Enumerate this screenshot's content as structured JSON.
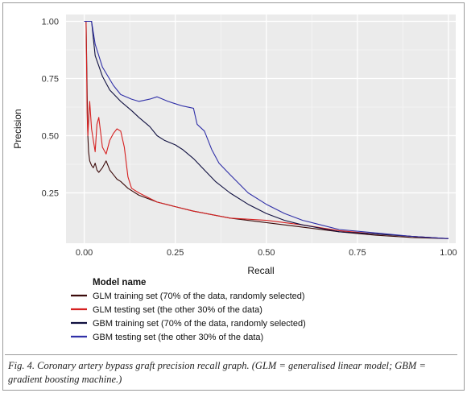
{
  "caption": "Fig. 4. Coronary artery bypass graft precision recall graph. (GLM = generalised linear model; GBM = gradient boosting machine.)",
  "chart_data": {
    "type": "line",
    "xlabel": "Recall",
    "ylabel": "Precision",
    "xlim": [
      -0.05,
      1.02
    ],
    "ylim": [
      0.03,
      1.03
    ],
    "x_ticks": [
      0.0,
      0.25,
      0.5,
      0.75,
      1.0
    ],
    "x_tick_labels": [
      "0.00",
      "0.25",
      "0.50",
      "0.75",
      "1.00"
    ],
    "y_ticks": [
      0.25,
      0.5,
      0.75,
      1.0
    ],
    "y_tick_labels": [
      "0.25",
      "0.50",
      "0.75",
      "1.00"
    ],
    "grid": true,
    "background": "#ebebeb",
    "legend": {
      "title": "Model name",
      "placement": "bottom-left"
    },
    "series": [
      {
        "name": "GLM training set (70% of the data, randomly selected)",
        "color": "#3b0a0a",
        "x": [
          0.0,
          0.005,
          0.008,
          0.01,
          0.012,
          0.015,
          0.02,
          0.025,
          0.03,
          0.035,
          0.04,
          0.05,
          0.06,
          0.07,
          0.08,
          0.09,
          0.1,
          0.12,
          0.15,
          0.2,
          0.25,
          0.3,
          0.4,
          0.5,
          0.6,
          0.7,
          0.8,
          0.9,
          1.0
        ],
        "y": [
          1.0,
          1.0,
          0.7,
          0.5,
          0.43,
          0.39,
          0.37,
          0.36,
          0.38,
          0.35,
          0.34,
          0.36,
          0.39,
          0.35,
          0.33,
          0.31,
          0.3,
          0.27,
          0.24,
          0.21,
          0.19,
          0.17,
          0.14,
          0.12,
          0.1,
          0.08,
          0.065,
          0.055,
          0.05
        ]
      },
      {
        "name": "GLM testing set (the other 30% of the data)",
        "color": "#d62020",
        "x": [
          0.0,
          0.005,
          0.008,
          0.01,
          0.015,
          0.02,
          0.025,
          0.03,
          0.035,
          0.04,
          0.05,
          0.06,
          0.07,
          0.08,
          0.09,
          0.1,
          0.11,
          0.12,
          0.13,
          0.15,
          0.2,
          0.25,
          0.3,
          0.4,
          0.5,
          0.6,
          0.7,
          0.8,
          0.9,
          1.0
        ],
        "y": [
          1.0,
          1.0,
          0.6,
          0.5,
          0.65,
          0.53,
          0.48,
          0.43,
          0.55,
          0.58,
          0.45,
          0.42,
          0.48,
          0.51,
          0.53,
          0.52,
          0.45,
          0.32,
          0.27,
          0.25,
          0.21,
          0.19,
          0.17,
          0.14,
          0.13,
          0.11,
          0.085,
          0.07,
          0.06,
          0.05
        ]
      },
      {
        "name": "GBM training set (70% of the data, randomly selected)",
        "color": "#101040",
        "x": [
          0.0,
          0.02,
          0.03,
          0.05,
          0.07,
          0.1,
          0.13,
          0.15,
          0.18,
          0.2,
          0.22,
          0.25,
          0.27,
          0.3,
          0.33,
          0.36,
          0.4,
          0.45,
          0.5,
          0.55,
          0.6,
          0.65,
          0.7,
          0.8,
          0.9,
          1.0
        ],
        "y": [
          1.0,
          1.0,
          0.85,
          0.76,
          0.7,
          0.65,
          0.61,
          0.58,
          0.54,
          0.5,
          0.48,
          0.46,
          0.44,
          0.4,
          0.35,
          0.3,
          0.25,
          0.2,
          0.16,
          0.13,
          0.11,
          0.095,
          0.08,
          0.07,
          0.06,
          0.05
        ]
      },
      {
        "name": "GBM testing set (the other 30% of the data)",
        "color": "#3030a8",
        "x": [
          0.0,
          0.02,
          0.03,
          0.05,
          0.08,
          0.1,
          0.13,
          0.15,
          0.18,
          0.2,
          0.23,
          0.25,
          0.27,
          0.3,
          0.31,
          0.33,
          0.35,
          0.37,
          0.4,
          0.45,
          0.5,
          0.55,
          0.6,
          0.65,
          0.7,
          0.8,
          0.9,
          1.0
        ],
        "y": [
          1.0,
          1.0,
          0.9,
          0.8,
          0.72,
          0.68,
          0.66,
          0.65,
          0.66,
          0.67,
          0.65,
          0.64,
          0.63,
          0.62,
          0.55,
          0.52,
          0.44,
          0.38,
          0.33,
          0.25,
          0.2,
          0.16,
          0.13,
          0.11,
          0.09,
          0.075,
          0.06,
          0.05
        ]
      }
    ]
  }
}
